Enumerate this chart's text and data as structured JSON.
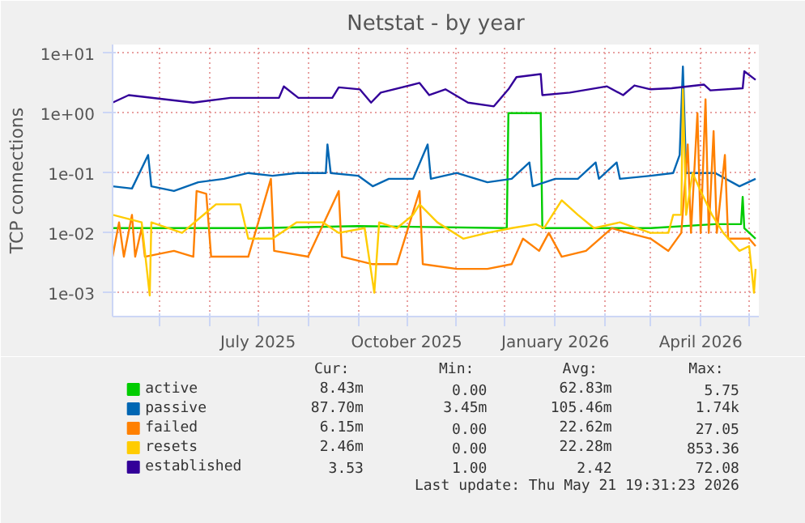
{
  "chart_data": {
    "type": "line",
    "title": "Netstat - by year",
    "ylabel": "TCP connections",
    "log": true,
    "grid": true,
    "legend": "bottom",
    "xlim": [
      "2025-04-02",
      "2026-05-07"
    ],
    "xticks": [
      {
        "value": "2025-05-01",
        "label": null
      },
      {
        "value": "2025-06-01",
        "label": null
      },
      {
        "value": "2025-07-01",
        "label": "July 2025"
      },
      {
        "value": "2025-08-01",
        "label": null
      },
      {
        "value": "2025-09-01",
        "label": null
      },
      {
        "value": "2025-10-01",
        "label": "October 2025"
      },
      {
        "value": "2025-11-01",
        "label": null
      },
      {
        "value": "2025-12-01",
        "label": null
      },
      {
        "value": "2026-01-01",
        "label": "January 2026"
      },
      {
        "value": "2026-02-01",
        "label": null
      },
      {
        "value": "2026-03-01",
        "label": null
      },
      {
        "value": "2026-04-01",
        "label": "April 2026"
      },
      {
        "value": "2026-05-01",
        "label": null
      }
    ],
    "ylim": [
      0.0004,
      14
    ],
    "yticks": [
      {
        "value": 0.001,
        "label": "1e-03"
      },
      {
        "value": 0.01,
        "label": "1e-02"
      },
      {
        "value": 0.1,
        "label": "1e-01"
      },
      {
        "value": 1,
        "label": "1e+00"
      },
      {
        "value": 10,
        "label": "1e+01"
      }
    ],
    "series": [
      {
        "name": "active",
        "color": "#00cc00",
        "x": [
          "2025-04-02",
          "2025-07-01",
          "2025-09-01",
          "2025-12-02",
          "2025-12-03",
          "2025-12-23",
          "2025-12-24",
          "2026-03-01",
          "2026-04-10",
          "2026-04-26",
          "2026-04-27",
          "2026-04-28",
          "2026-05-05"
        ],
        "values": [
          0.012,
          0.012,
          0.013,
          0.012,
          1.0,
          1.0,
          0.012,
          0.012,
          0.014,
          0.014,
          0.04,
          0.012,
          0.008
        ]
      },
      {
        "name": "passive",
        "color": "#0066b3",
        "x": [
          "2025-04-02",
          "2025-04-14",
          "2025-04-24",
          "2025-04-26",
          "2025-05-10",
          "2025-05-25",
          "2025-06-10",
          "2025-06-25",
          "2025-07-10",
          "2025-07-25",
          "2025-08-12",
          "2025-08-13",
          "2025-08-15",
          "2025-09-01",
          "2025-09-10",
          "2025-09-20",
          "2025-10-05",
          "2025-10-14",
          "2025-10-16",
          "2025-11-01",
          "2025-11-20",
          "2025-12-05",
          "2025-12-16",
          "2025-12-18",
          "2026-01-01",
          "2026-01-15",
          "2026-01-26",
          "2026-01-28",
          "2026-02-08",
          "2026-02-10",
          "2026-03-01",
          "2026-03-15",
          "2026-03-19",
          "2026-03-21",
          "2026-03-23",
          "2026-04-10",
          "2026-04-25",
          "2026-05-05"
        ],
        "values": [
          0.06,
          0.055,
          0.2,
          0.06,
          0.05,
          0.07,
          0.08,
          0.1,
          0.09,
          0.1,
          0.1,
          0.3,
          0.1,
          0.09,
          0.06,
          0.08,
          0.08,
          0.3,
          0.08,
          0.1,
          0.07,
          0.08,
          0.15,
          0.06,
          0.08,
          0.08,
          0.15,
          0.08,
          0.15,
          0.08,
          0.09,
          0.1,
          0.2,
          6.0,
          0.1,
          0.1,
          0.06,
          0.08
        ]
      },
      {
        "name": "failed",
        "color": "#ff8000",
        "x": [
          "2025-04-02",
          "2025-04-06",
          "2025-04-09",
          "2025-04-14",
          "2025-04-16",
          "2025-04-20",
          "2025-04-22",
          "2025-05-10",
          "2025-05-22",
          "2025-05-24",
          "2025-05-30",
          "2025-06-02",
          "2025-06-25",
          "2025-07-09",
          "2025-07-11",
          "2025-08-01",
          "2025-08-20",
          "2025-08-22",
          "2025-09-10",
          "2025-09-25",
          "2025-10-09",
          "2025-10-11",
          "2025-11-01",
          "2025-11-20",
          "2025-12-05",
          "2025-12-12",
          "2025-12-22",
          "2025-12-28",
          "2026-01-05",
          "2026-01-20",
          "2026-02-05",
          "2026-02-15",
          "2026-03-01",
          "2026-03-12",
          "2026-03-20",
          "2026-03-24",
          "2026-03-26",
          "2026-03-30",
          "2026-04-01",
          "2026-04-04",
          "2026-04-06",
          "2026-04-09",
          "2026-04-11",
          "2026-04-16",
          "2026-04-18",
          "2026-05-01",
          "2026-05-05"
        ],
        "values": [
          0.004,
          0.015,
          0.004,
          0.02,
          0.004,
          0.012,
          0.004,
          0.005,
          0.004,
          0.05,
          0.045,
          0.004,
          0.004,
          0.08,
          0.005,
          0.004,
          0.05,
          0.004,
          0.003,
          0.003,
          0.05,
          0.003,
          0.0025,
          0.0025,
          0.003,
          0.008,
          0.005,
          0.01,
          0.004,
          0.005,
          0.012,
          0.01,
          0.008,
          0.005,
          0.01,
          0.3,
          0.01,
          1.0,
          0.01,
          1.7,
          0.01,
          0.5,
          0.01,
          0.2,
          0.008,
          0.008,
          0.006
        ]
      },
      {
        "name": "resets",
        "color": "#ffcc00",
        "x": [
          "2025-04-02",
          "2025-04-20",
          "2025-04-25",
          "2025-04-26",
          "2025-05-15",
          "2025-06-05",
          "2025-06-20",
          "2025-06-25",
          "2025-07-10",
          "2025-07-25",
          "2025-08-10",
          "2025-08-20",
          "2025-09-05",
          "2025-09-11",
          "2025-09-14",
          "2025-09-25",
          "2025-10-05",
          "2025-10-09",
          "2025-10-20",
          "2025-11-05",
          "2025-11-20",
          "2025-12-05",
          "2025-12-20",
          "2025-12-25",
          "2026-01-05",
          "2026-01-15",
          "2026-01-25",
          "2026-02-10",
          "2026-03-01",
          "2026-03-12",
          "2026-03-15",
          "2026-03-20",
          "2026-03-21",
          "2026-03-23",
          "2026-03-27",
          "2026-04-01",
          "2026-04-08",
          "2026-04-15",
          "2026-04-25",
          "2026-05-01",
          "2026-05-04",
          "2026-05-05"
        ],
        "values": [
          0.02,
          0.015,
          0.0009,
          0.015,
          0.01,
          0.03,
          0.03,
          0.008,
          0.008,
          0.015,
          0.015,
          0.01,
          0.012,
          0.001,
          0.015,
          0.012,
          0.02,
          0.03,
          0.015,
          0.008,
          0.01,
          0.012,
          0.014,
          0.012,
          0.035,
          0.02,
          0.012,
          0.015,
          0.01,
          0.01,
          0.02,
          0.02,
          2.5,
          0.02,
          0.1,
          0.05,
          0.02,
          0.01,
          0.005,
          0.006,
          0.001,
          0.0025
        ]
      },
      {
        "name": "established",
        "color": "#330099",
        "x": [
          "2025-04-02",
          "2025-04-12",
          "2025-05-22",
          "2025-06-14",
          "2025-07-14",
          "2025-07-17",
          "2025-07-26",
          "2025-08-16",
          "2025-08-20",
          "2025-09-02",
          "2025-09-09",
          "2025-09-15",
          "2025-10-09",
          "2025-10-15",
          "2025-10-25",
          "2025-11-08",
          "2025-11-24",
          "2025-12-03",
          "2025-12-08",
          "2025-12-23",
          "2025-12-24",
          "2026-01-10",
          "2026-02-02",
          "2026-02-12",
          "2026-02-19",
          "2026-03-01",
          "2026-03-14",
          "2026-04-03",
          "2026-04-07",
          "2026-04-27",
          "2026-04-28",
          "2026-05-05"
        ],
        "values": [
          1.5,
          2.0,
          1.5,
          1.8,
          1.8,
          2.8,
          1.8,
          1.8,
          2.7,
          2.5,
          1.5,
          2.2,
          3.2,
          2.0,
          2.5,
          1.5,
          1.3,
          2.5,
          4.0,
          4.5,
          2.0,
          2.2,
          2.8,
          2.0,
          2.9,
          2.5,
          2.6,
          3.0,
          2.4,
          2.6,
          5.0,
          3.6
        ]
      }
    ],
    "annotations": [
      "Cur:",
      "Min:",
      "Avg:",
      "Max:",
      "8.43m",
      "0.00",
      "62.83m",
      "5.75",
      "87.70m",
      "3.45m",
      "105.46m",
      "1.74k",
      "6.15m",
      "0.00",
      "22.62m",
      "27.05",
      "2.46m",
      "0.00",
      "22.28m",
      "853.36",
      "3.53",
      "1.00",
      "2.42",
      "72.08",
      "Last update: Thu May 21 19:31:23 2026"
    ]
  }
}
